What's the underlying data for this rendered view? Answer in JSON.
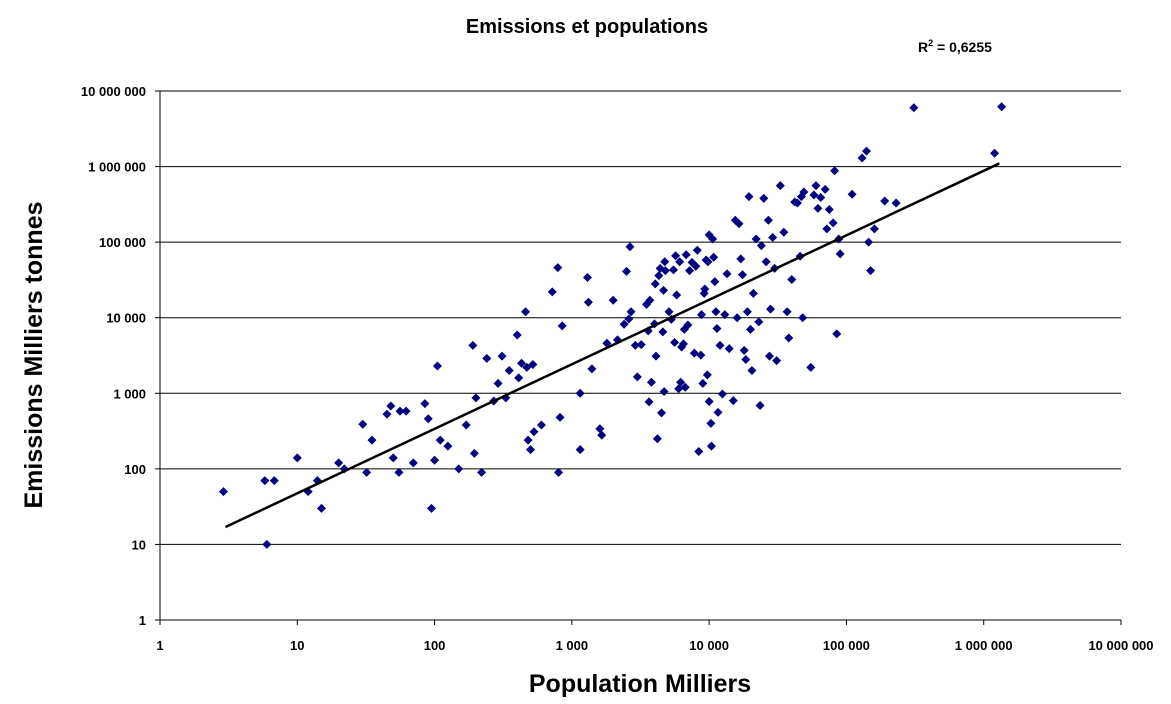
{
  "chart_data": {
    "type": "scatter",
    "title": "Emissions et populations",
    "xlabel": "Population Milliers",
    "ylabel": "Emissions Milliers tonnes",
    "x_scale": "log",
    "y_scale": "log",
    "xlim": [
      1,
      10000000
    ],
    "ylim": [
      1,
      10000000
    ],
    "grid": "horizontal major gridlines",
    "x_ticks": [
      1,
      10,
      100,
      1000,
      10000,
      100000,
      1000000,
      10000000
    ],
    "x_tick_labels": [
      "1",
      "10",
      "100",
      "1 000",
      "10 000",
      "100 000",
      "1 000 000",
      "10 000 000"
    ],
    "y_ticks": [
      1,
      10,
      100,
      1000,
      10000,
      100000,
      1000000,
      10000000
    ],
    "y_tick_labels": [
      "1",
      "10",
      "100",
      "1 000",
      "10 000",
      "100 000",
      "1 000 000",
      "10 000 000"
    ],
    "annotation": {
      "r2_label": "R",
      "r2_sup": "2",
      "r2_value": " = 0,6255"
    },
    "trendline": {
      "type": "power",
      "x": [
        3,
        1300000
      ],
      "y": [
        17,
        1100000
      ]
    },
    "marker_color": "#000080",
    "points": [
      [
        2.9,
        50
      ],
      [
        5.8,
        70
      ],
      [
        6.0,
        10
      ],
      [
        6.8,
        70
      ],
      [
        10,
        140
      ],
      [
        12,
        50
      ],
      [
        14,
        70
      ],
      [
        15,
        30
      ],
      [
        20,
        120
      ],
      [
        22,
        100
      ],
      [
        30,
        390
      ],
      [
        32,
        90
      ],
      [
        35,
        240
      ],
      [
        45,
        530
      ],
      [
        48,
        680
      ],
      [
        50,
        140
      ],
      [
        55,
        90
      ],
      [
        56,
        580
      ],
      [
        62,
        580
      ],
      [
        70,
        120
      ],
      [
        85,
        730
      ],
      [
        90,
        460
      ],
      [
        95,
        30
      ],
      [
        100,
        130
      ],
      [
        105,
        2300
      ],
      [
        110,
        240
      ],
      [
        125,
        200
      ],
      [
        150,
        100
      ],
      [
        170,
        380
      ],
      [
        190,
        4300
      ],
      [
        195,
        160
      ],
      [
        200,
        870
      ],
      [
        220,
        90
      ],
      [
        240,
        2900
      ],
      [
        270,
        790
      ],
      [
        290,
        1350
      ],
      [
        310,
        3100
      ],
      [
        330,
        870
      ],
      [
        350,
        2000
      ],
      [
        400,
        5900
      ],
      [
        410,
        1600
      ],
      [
        430,
        2500
      ],
      [
        460,
        12000
      ],
      [
        470,
        2200
      ],
      [
        480,
        240
      ],
      [
        500,
        180
      ],
      [
        520,
        2400
      ],
      [
        530,
        310
      ],
      [
        600,
        380
      ],
      [
        720,
        22000
      ],
      [
        790,
        46000
      ],
      [
        800,
        90
      ],
      [
        820,
        480
      ],
      [
        850,
        7800
      ],
      [
        1150,
        180
      ],
      [
        1150,
        1000
      ],
      [
        1300,
        34000
      ],
      [
        1320,
        16000
      ],
      [
        1400,
        2100
      ],
      [
        1600,
        340
      ],
      [
        1650,
        280
      ],
      [
        1800,
        4600
      ],
      [
        2000,
        17000
      ],
      [
        2150,
        5100
      ],
      [
        2400,
        8200
      ],
      [
        2500,
        41000
      ],
      [
        2600,
        9600
      ],
      [
        2650,
        87000
      ],
      [
        2700,
        12000
      ],
      [
        2900,
        4300
      ],
      [
        3000,
        1650
      ],
      [
        3200,
        4400
      ],
      [
        3500,
        15000
      ],
      [
        3600,
        6700
      ],
      [
        3650,
        770
      ],
      [
        3700,
        17000
      ],
      [
        3800,
        1400
      ],
      [
        4000,
        8300
      ],
      [
        4050,
        28000
      ],
      [
        4100,
        3100
      ],
      [
        4200,
        250
      ],
      [
        4300,
        36000
      ],
      [
        4400,
        45000
      ],
      [
        4500,
        550
      ],
      [
        4600,
        6500
      ],
      [
        4650,
        23000
      ],
      [
        4700,
        1050
      ],
      [
        4750,
        55000
      ],
      [
        4800,
        42000
      ],
      [
        5100,
        12000
      ],
      [
        5300,
        9500
      ],
      [
        5500,
        43000
      ],
      [
        5600,
        4700
      ],
      [
        5700,
        66000
      ],
      [
        5800,
        20000
      ],
      [
        6000,
        1150
      ],
      [
        6100,
        55000
      ],
      [
        6200,
        1400
      ],
      [
        6300,
        4100
      ],
      [
        6500,
        4500
      ],
      [
        6600,
        7000
      ],
      [
        6700,
        1200
      ],
      [
        6800,
        68000
      ],
      [
        7000,
        8000
      ],
      [
        7200,
        42000
      ],
      [
        7500,
        54000
      ],
      [
        7800,
        3400
      ],
      [
        8000,
        48000
      ],
      [
        8200,
        78000
      ],
      [
        8400,
        170
      ],
      [
        8700,
        3200
      ],
      [
        8800,
        11000
      ],
      [
        9000,
        1350
      ],
      [
        9200,
        21000
      ],
      [
        9300,
        24000
      ],
      [
        9500,
        58000
      ],
      [
        9700,
        1750
      ],
      [
        9800,
        55000
      ],
      [
        10000,
        780
      ],
      [
        10000,
        125000
      ],
      [
        10300,
        400
      ],
      [
        10400,
        200
      ],
      [
        10600,
        110000
      ],
      [
        10800,
        63000
      ],
      [
        11000,
        30000
      ],
      [
        11200,
        12000
      ],
      [
        11400,
        7200
      ],
      [
        11600,
        560
      ],
      [
        12000,
        4300
      ],
      [
        12500,
        980
      ],
      [
        13000,
        11000
      ],
      [
        13500,
        38000
      ],
      [
        14000,
        3900
      ],
      [
        15000,
        800
      ],
      [
        15500,
        195000
      ],
      [
        16000,
        10000
      ],
      [
        16500,
        175000
      ],
      [
        17000,
        60000
      ],
      [
        17500,
        37000
      ],
      [
        18000,
        3700
      ],
      [
        18500,
        2800
      ],
      [
        19000,
        12000
      ],
      [
        19500,
        400000
      ],
      [
        20000,
        7000
      ],
      [
        20500,
        2000
      ],
      [
        21000,
        21000
      ],
      [
        22000,
        110000
      ],
      [
        23000,
        8800
      ],
      [
        23500,
        690
      ],
      [
        24000,
        90000
      ],
      [
        25000,
        380000
      ],
      [
        26000,
        55000
      ],
      [
        27000,
        195000
      ],
      [
        27500,
        3100
      ],
      [
        28000,
        13000
      ],
      [
        29000,
        115000
      ],
      [
        30000,
        45000
      ],
      [
        31000,
        2700
      ],
      [
        33000,
        560000
      ],
      [
        35000,
        135000
      ],
      [
        37000,
        12000
      ],
      [
        38000,
        5400
      ],
      [
        40000,
        32000
      ],
      [
        42000,
        340000
      ],
      [
        44000,
        330000
      ],
      [
        46000,
        65000
      ],
      [
        47000,
        400000
      ],
      [
        48000,
        10000
      ],
      [
        49000,
        460000
      ],
      [
        55000,
        2200
      ],
      [
        58000,
        420000
      ],
      [
        60000,
        560000
      ],
      [
        62000,
        280000
      ],
      [
        65000,
        390000
      ],
      [
        70000,
        500000
      ],
      [
        72000,
        150000
      ],
      [
        75000,
        270000
      ],
      [
        80000,
        180000
      ],
      [
        82000,
        880000
      ],
      [
        85000,
        6100
      ],
      [
        88000,
        110000
      ],
      [
        90000,
        70000
      ],
      [
        110000,
        430000
      ],
      [
        130000,
        1300000
      ],
      [
        140000,
        1600000
      ],
      [
        145000,
        100000
      ],
      [
        150000,
        42000
      ],
      [
        160000,
        150000
      ],
      [
        190000,
        350000
      ],
      [
        230000,
        330000
      ],
      [
        310000,
        6000000
      ],
      [
        1200000,
        1500000
      ],
      [
        1350000,
        6200000
      ]
    ]
  }
}
